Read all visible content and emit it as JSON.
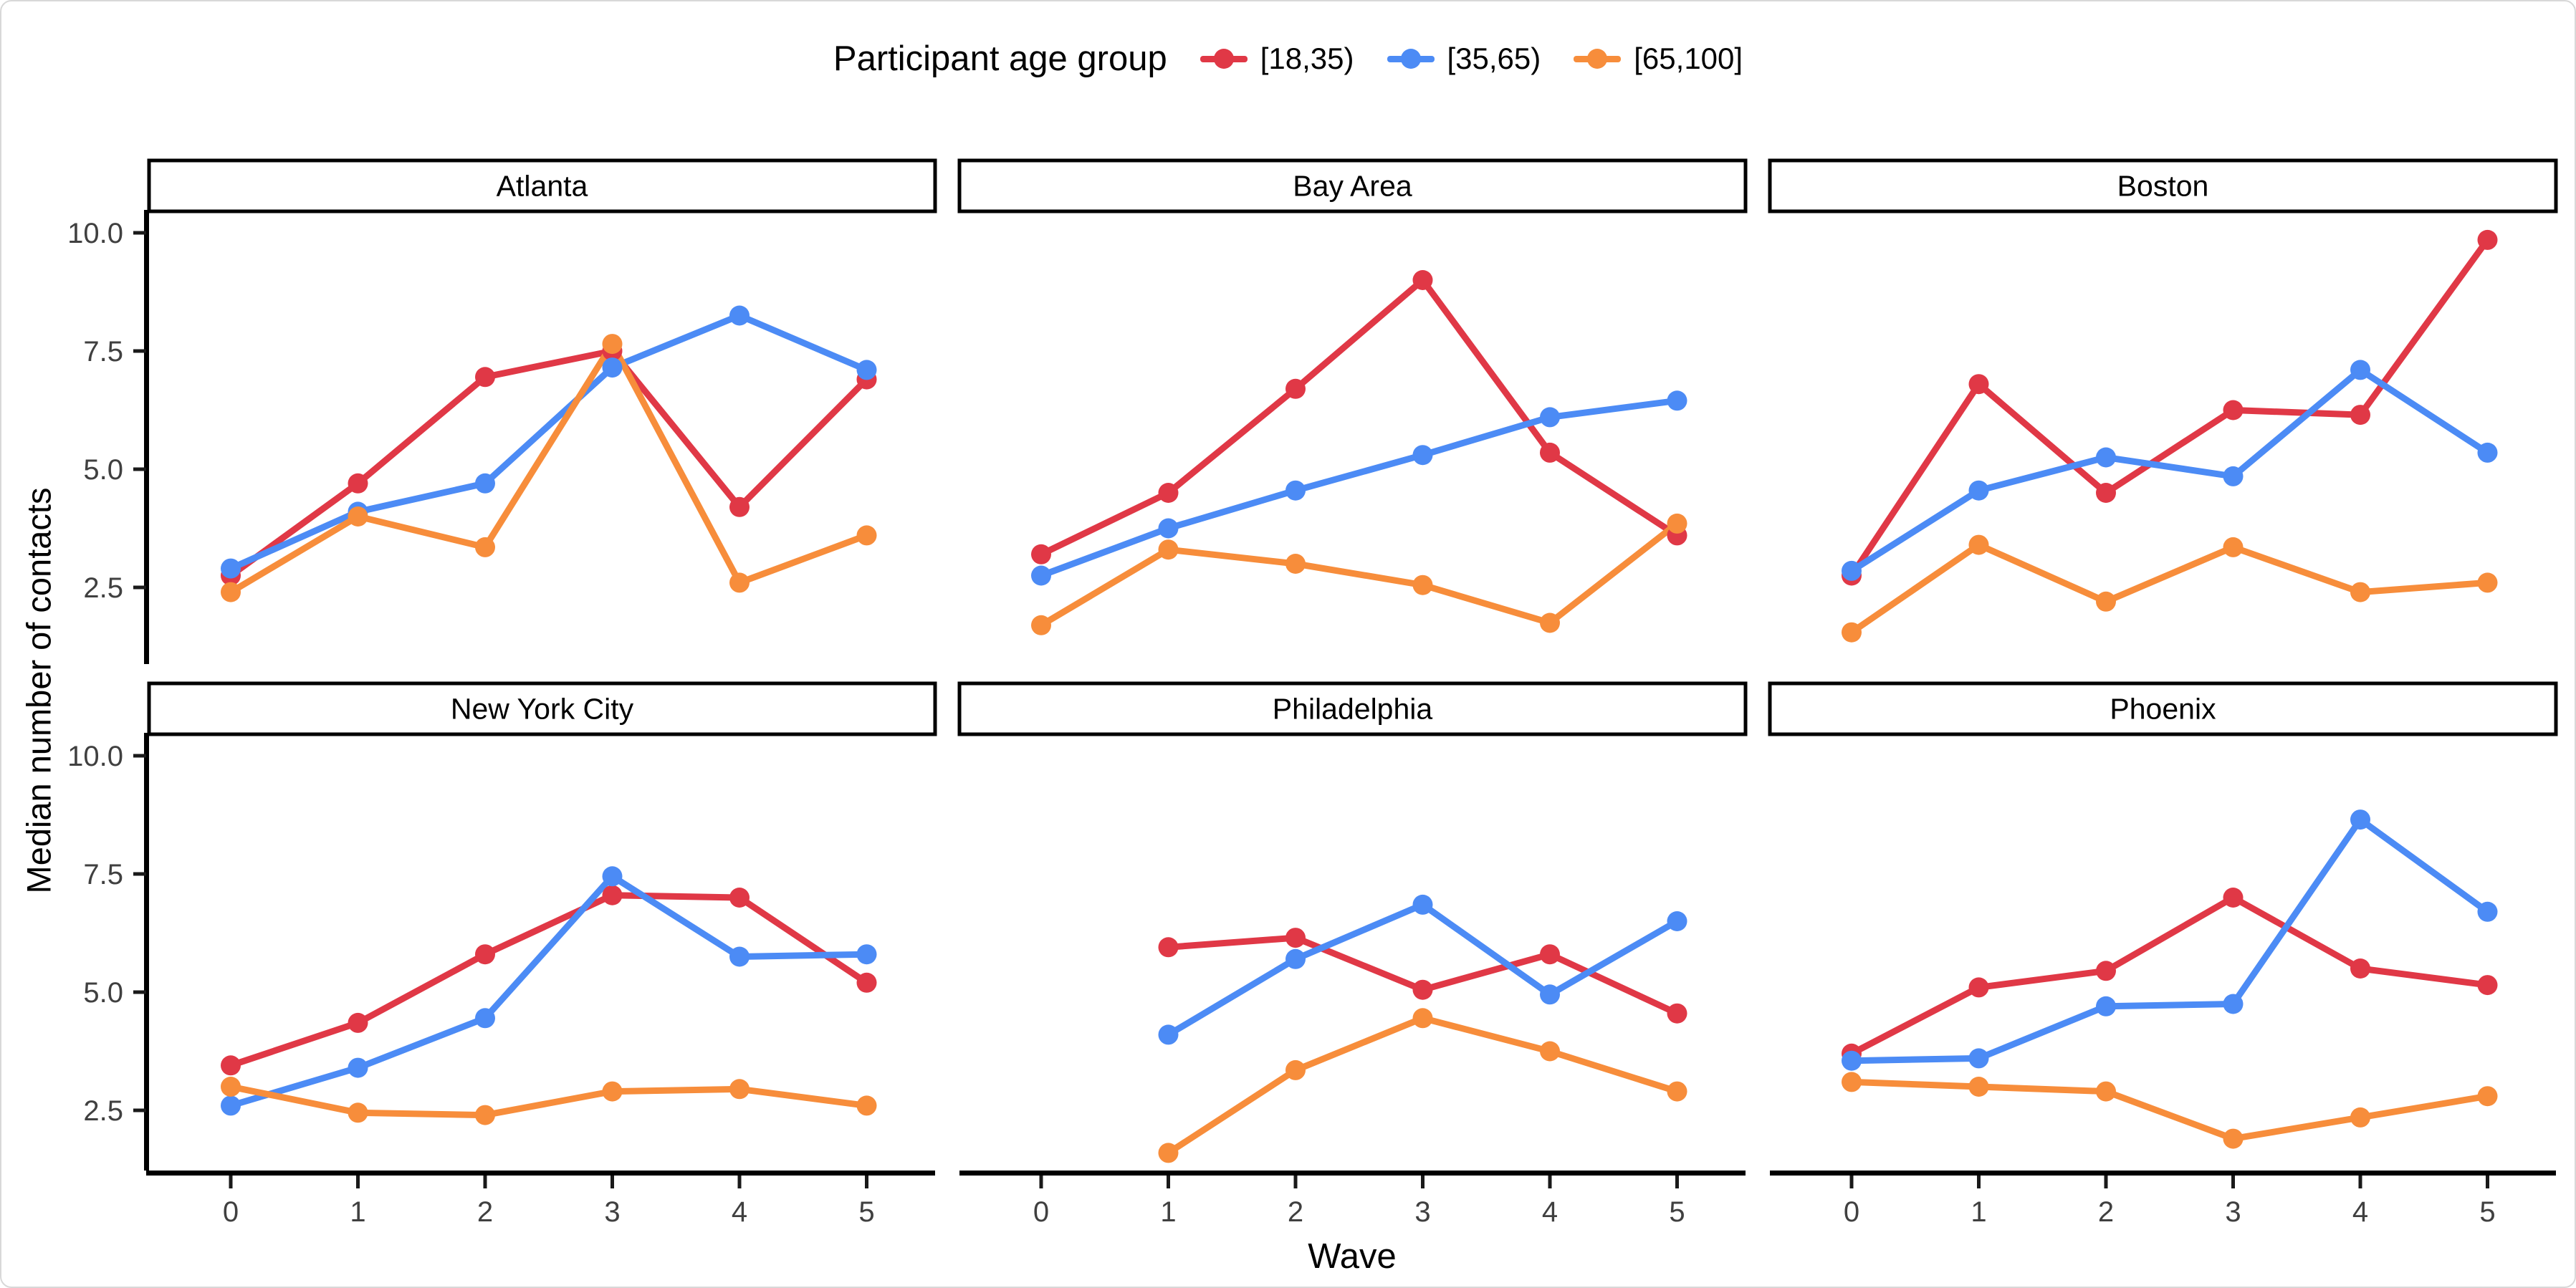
{
  "chart_data": {
    "type": "line",
    "legend_title": "Participant age group",
    "legend_position": "top",
    "xlabel": "Wave",
    "ylabel": "Median number of contacts",
    "x": [
      0,
      1,
      2,
      3,
      4,
      5
    ],
    "x_ticks": [
      "0",
      "1",
      "2",
      "3",
      "4",
      "5"
    ],
    "y_ticks": [
      "2.5",
      "5.0",
      "7.5",
      "10.0"
    ],
    "ylim": [
      0.9,
      10.6
    ],
    "grid": "off",
    "series": [
      {
        "label": "[18,35)",
        "color": "#e03846"
      },
      {
        "label": "[35,65)",
        "color": "#4c8bf5"
      },
      {
        "label": "[65,100]",
        "color": "#f78d3b"
      }
    ],
    "facets": [
      {
        "title": "Atlanta",
        "values": [
          [
            2.75,
            4.7,
            6.95,
            7.5,
            4.2,
            6.9
          ],
          [
            2.9,
            4.1,
            4.7,
            7.15,
            8.25,
            7.1
          ],
          [
            2.4,
            4.0,
            3.35,
            7.65,
            2.6,
            3.6
          ]
        ]
      },
      {
        "title": "Bay Area",
        "values": [
          [
            3.2,
            4.5,
            6.7,
            9.0,
            5.35,
            3.6
          ],
          [
            2.75,
            3.75,
            4.55,
            5.3,
            6.1,
            6.45
          ],
          [
            1.7,
            3.3,
            3.0,
            2.55,
            1.75,
            3.85
          ]
        ]
      },
      {
        "title": "Boston",
        "values": [
          [
            2.75,
            6.8,
            4.5,
            6.25,
            6.15,
            9.85
          ],
          [
            2.85,
            4.55,
            5.25,
            4.85,
            7.1,
            5.35
          ],
          [
            1.55,
            3.4,
            2.2,
            3.35,
            2.4,
            2.6
          ]
        ]
      },
      {
        "title": "New York City",
        "values": [
          [
            3.45,
            4.35,
            5.8,
            7.05,
            7.0,
            5.2
          ],
          [
            2.6,
            3.4,
            4.45,
            7.45,
            5.75,
            5.8
          ],
          [
            3.0,
            2.45,
            2.4,
            2.9,
            2.95,
            2.6
          ]
        ]
      },
      {
        "title": "Philadelphia",
        "values": [
          [
            null,
            5.95,
            6.15,
            5.05,
            5.8,
            4.55
          ],
          [
            null,
            4.1,
            5.7,
            6.85,
            4.95,
            6.5
          ],
          [
            null,
            1.6,
            3.35,
            4.45,
            3.75,
            2.9
          ]
        ]
      },
      {
        "title": "Phoenix",
        "values": [
          [
            3.7,
            5.1,
            5.45,
            7.0,
            5.5,
            5.15
          ],
          [
            3.55,
            3.6,
            4.7,
            4.75,
            8.65,
            6.7
          ],
          [
            3.1,
            3.0,
            2.9,
            1.9,
            2.35,
            2.8
          ]
        ]
      }
    ]
  }
}
